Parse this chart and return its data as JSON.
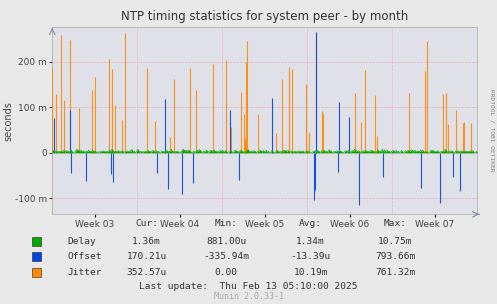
{
  "title": "NTP timing statistics for system peer - by month",
  "ylabel": "seconds",
  "rrdtool_label": "RRDTOOL / TOBI OETIKER",
  "background_color": "#e8e8e8",
  "plot_bg_color": "#e0e0e8",
  "grid_color_red": "#ffaaaa",
  "grid_color_blue": "#bbbbcc",
  "ytick_vals": [
    -0.1,
    0.0,
    0.1,
    0.2
  ],
  "ytick_labels": [
    "-100 m",
    "0",
    "100 m",
    "200 m"
  ],
  "xtick_labels": [
    "Week 03",
    "Week 04",
    "Week 05",
    "Week 06",
    "Week 07"
  ],
  "ylim": [
    -0.135,
    0.275
  ],
  "delay_color": "#00aa00",
  "offset_color": "#0044dd",
  "jitter_color": "#ff8800",
  "stats_headers": [
    "Cur:",
    "Min:",
    "Avg:",
    "Max:"
  ],
  "stats_delay": [
    "1.36m",
    "881.00u",
    "1.34m",
    "10.75m"
  ],
  "stats_offset": [
    "170.21u",
    "-335.94m",
    "-13.39u",
    "793.66m"
  ],
  "stats_jitter": [
    "352.57u",
    "0.00",
    "10.19m",
    "761.32m"
  ],
  "last_update": "Last update:  Thu Feb 13 05:10:00 2025",
  "munin_version": "Munin 2.0.33-1",
  "n_points": 400,
  "seed": 7
}
